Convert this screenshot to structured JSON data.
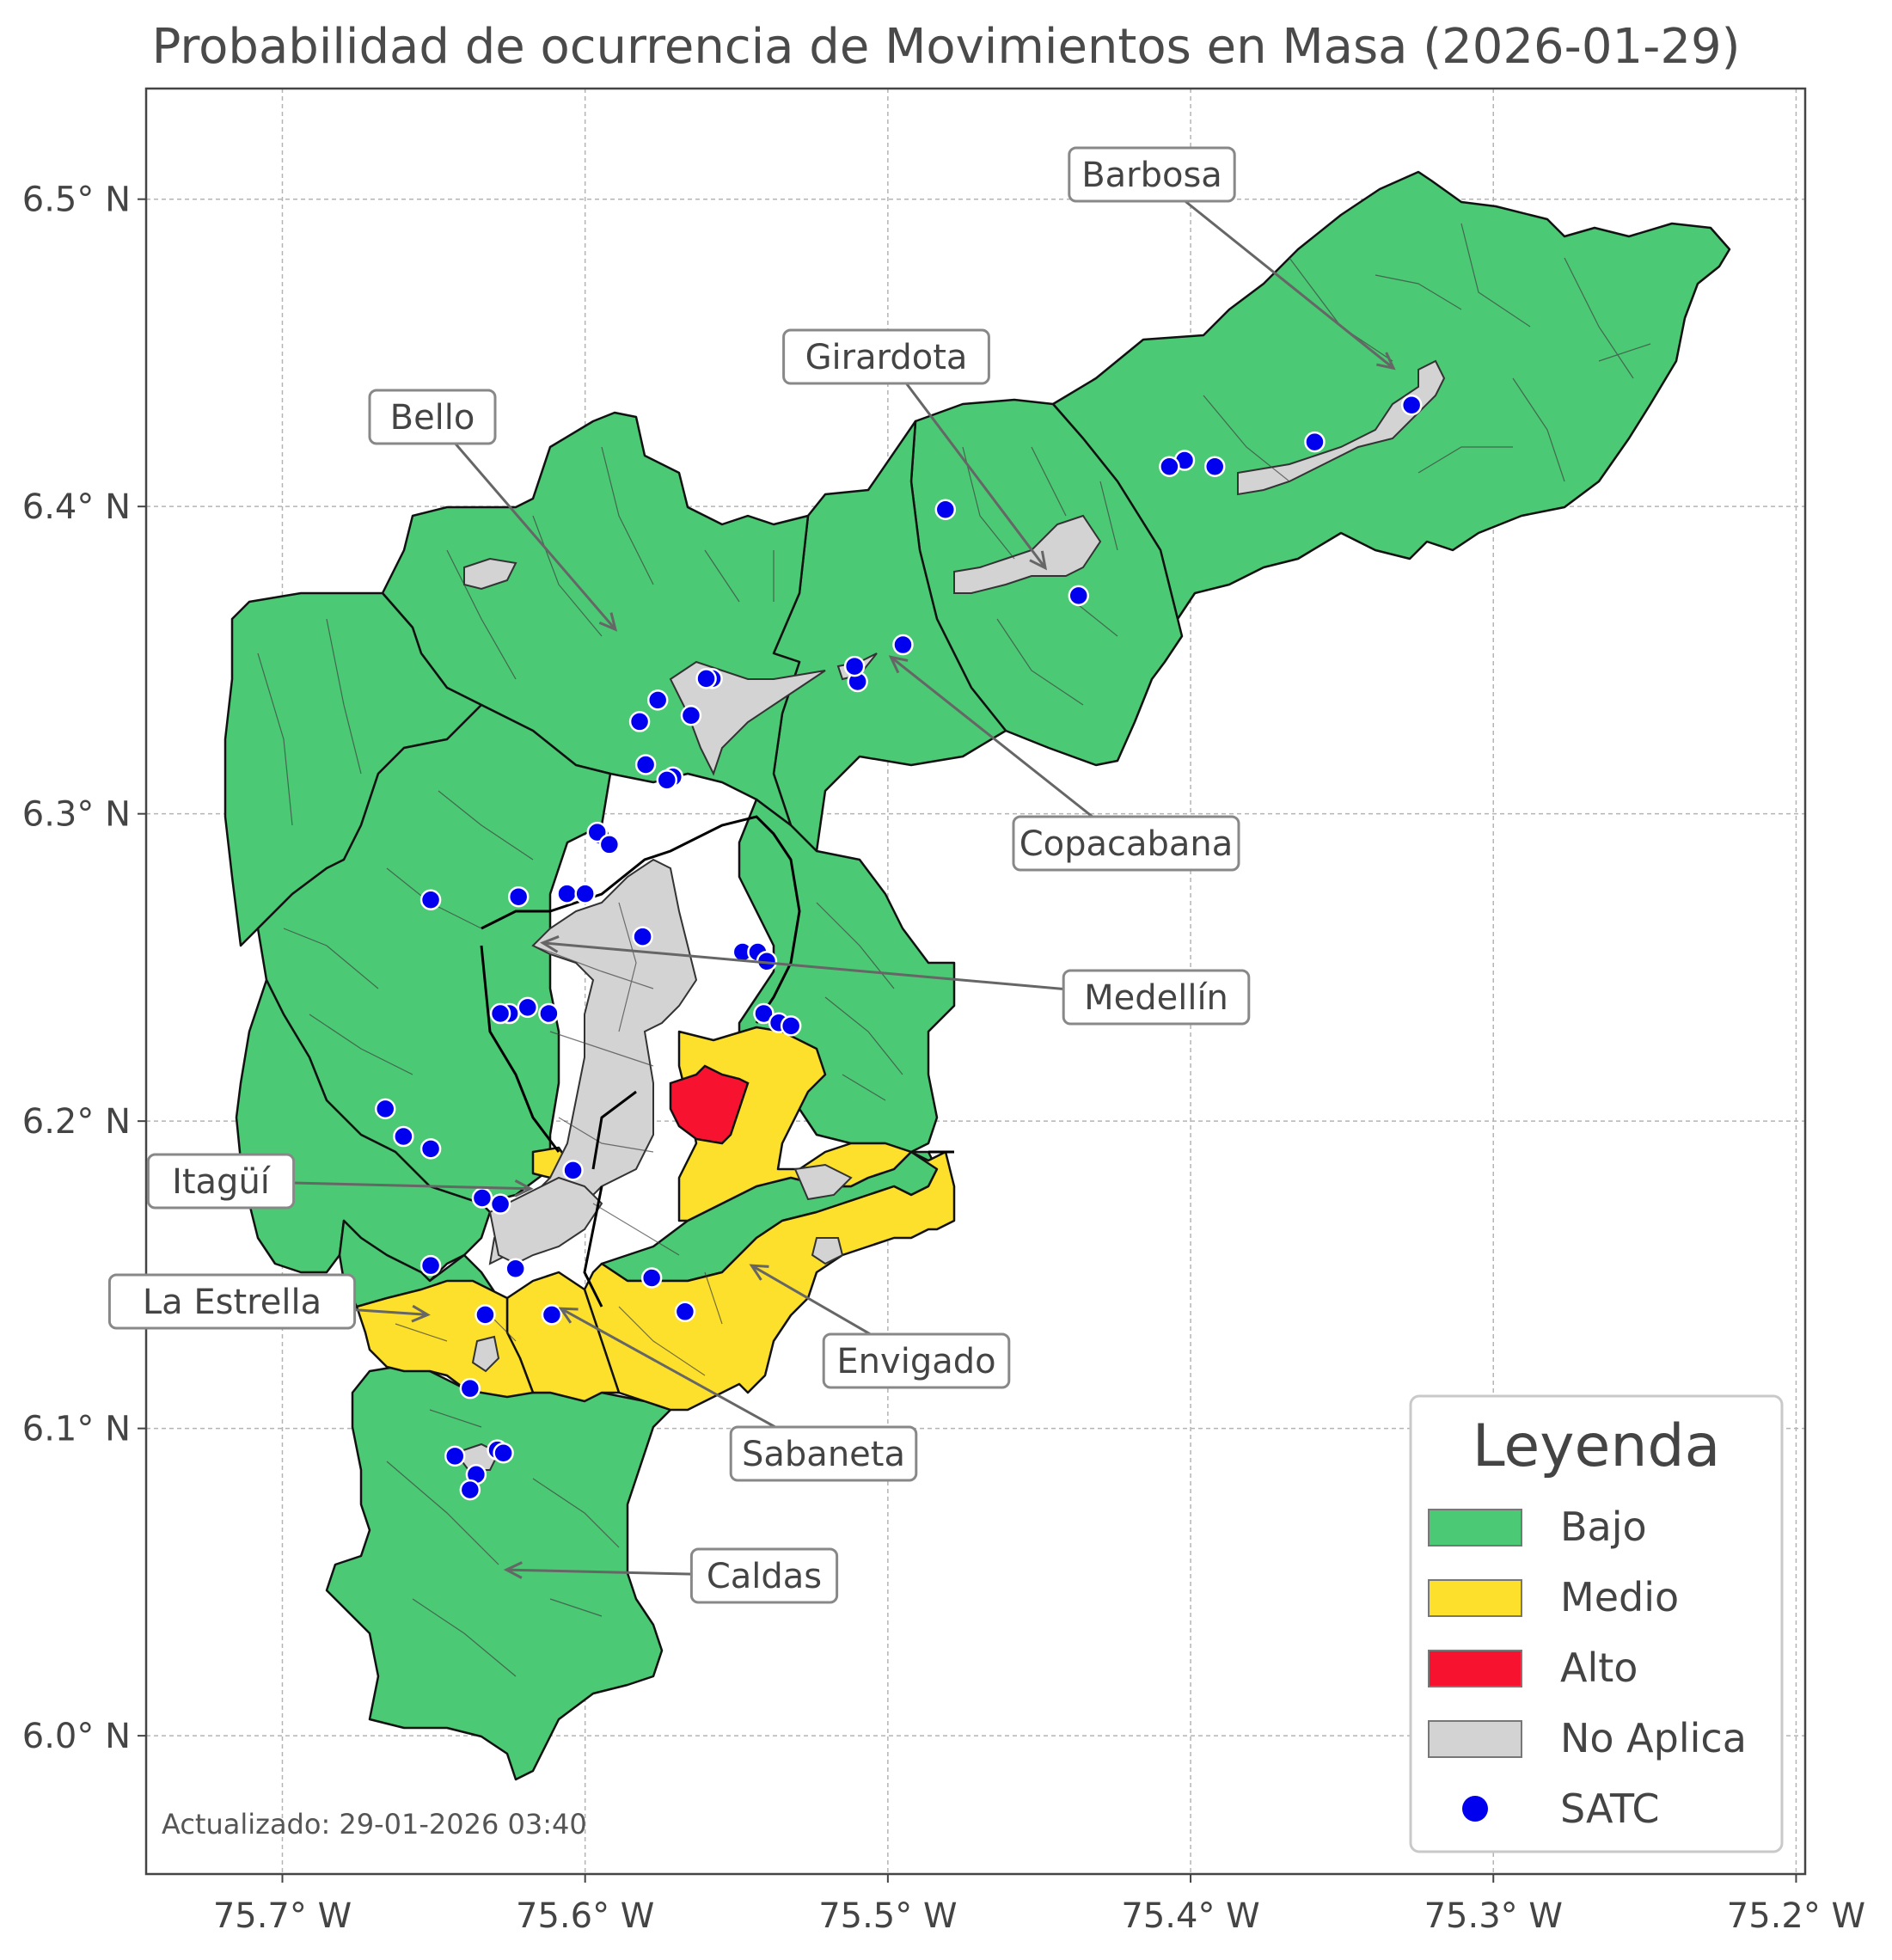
{
  "title": "Probabilidad de ocurrencia de Movimientos en Masa (2026-01-29)",
  "updated": "Actualizado: 29-01-2026 03:40",
  "colors": {
    "bajo": "#4bc974",
    "medio": "#fde02b",
    "alto": "#f7122f",
    "no_aplica": "#d3d3d3",
    "satc": "#0000ee"
  },
  "axes": {
    "lon_ticks": [
      "75.7° W",
      "75.6° W",
      "75.5° W",
      "75.4° W",
      "75.3° W",
      "75.2° W"
    ],
    "lat_ticks": [
      "6.5° N",
      "6.4° N",
      "6.3° N",
      "6.2° N",
      "6.1° N",
      "6.0° N"
    ],
    "lon_range": [
      -75.745,
      -75.197
    ],
    "lat_range": [
      5.955,
      6.536
    ],
    "grid": true
  },
  "legend": {
    "title": "Leyenda",
    "placement": "bottom-right",
    "items": [
      {
        "label": "Bajo",
        "key": "bajo"
      },
      {
        "label": "Medio",
        "key": "medio"
      },
      {
        "label": "Alto",
        "key": "alto"
      },
      {
        "label": "No Aplica",
        "key": "no_aplica"
      },
      {
        "label": "SATC",
        "key": "satc"
      }
    ]
  },
  "municipalities": [
    {
      "name": "Barbosa",
      "lon": -75.333,
      "lat": 6.445
    },
    {
      "name": "Girardota",
      "lon": -75.448,
      "lat": 6.38
    },
    {
      "name": "Bello",
      "lon": -75.59,
      "lat": 6.36
    },
    {
      "name": "Copacabana",
      "lon": -75.499,
      "lat": 6.351
    },
    {
      "name": "Medellín",
      "lon": -75.614,
      "lat": 6.258
    },
    {
      "name": "Itagüí",
      "lon": -75.618,
      "lat": 6.178
    },
    {
      "name": "La Estrella",
      "lon": -75.652,
      "lat": 6.137
    },
    {
      "name": "Envigado",
      "lon": -75.545,
      "lat": 6.153
    },
    {
      "name": "Sabaneta",
      "lon": -75.608,
      "lat": 6.139
    },
    {
      "name": "Caldas",
      "lon": -75.626,
      "lat": 6.054
    }
  ],
  "satc_points": [
    [
      -75.327,
      6.433
    ],
    [
      -75.359,
      6.421
    ],
    [
      -75.392,
      6.413
    ],
    [
      -75.402,
      6.415
    ],
    [
      -75.407,
      6.413
    ],
    [
      -75.481,
      6.399
    ],
    [
      -75.437,
      6.371
    ],
    [
      -75.495,
      6.355
    ],
    [
      -75.51,
      6.343
    ],
    [
      -75.511,
      6.348
    ],
    [
      -75.558,
      6.344
    ],
    [
      -75.56,
      6.344
    ],
    [
      -75.565,
      6.332
    ],
    [
      -75.576,
      6.337
    ],
    [
      -75.582,
      6.33
    ],
    [
      -75.58,
      6.316
    ],
    [
      -75.571,
      6.312
    ],
    [
      -75.573,
      6.311
    ],
    [
      -75.595,
      6.293
    ],
    [
      -75.596,
      6.294
    ],
    [
      -75.592,
      6.29
    ],
    [
      -75.651,
      6.272
    ],
    [
      -75.622,
      6.273
    ],
    [
      -75.606,
      6.274
    ],
    [
      -75.6,
      6.274
    ],
    [
      -75.581,
      6.26
    ],
    [
      -75.548,
      6.255
    ],
    [
      -75.543,
      6.255
    ],
    [
      -75.54,
      6.252
    ],
    [
      -75.541,
      6.235
    ],
    [
      -75.536,
      6.232
    ],
    [
      -75.532,
      6.231
    ],
    [
      -75.612,
      6.235
    ],
    [
      -75.619,
      6.237
    ],
    [
      -75.625,
      6.235
    ],
    [
      -75.628,
      6.235
    ],
    [
      -75.666,
      6.204
    ],
    [
      -75.66,
      6.195
    ],
    [
      -75.651,
      6.191
    ],
    [
      -75.604,
      6.184
    ],
    [
      -75.634,
      6.175
    ],
    [
      -75.628,
      6.173
    ],
    [
      -75.623,
      6.152
    ],
    [
      -75.651,
      6.153
    ],
    [
      -75.578,
      6.149
    ],
    [
      -75.567,
      6.138
    ],
    [
      -75.611,
      6.137
    ],
    [
      -75.633,
      6.137
    ],
    [
      -75.638,
      6.113
    ],
    [
      -75.643,
      6.091
    ],
    [
      -75.629,
      6.093
    ],
    [
      -75.627,
      6.092
    ],
    [
      -75.636,
      6.085
    ],
    [
      -75.638,
      6.08
    ]
  ]
}
